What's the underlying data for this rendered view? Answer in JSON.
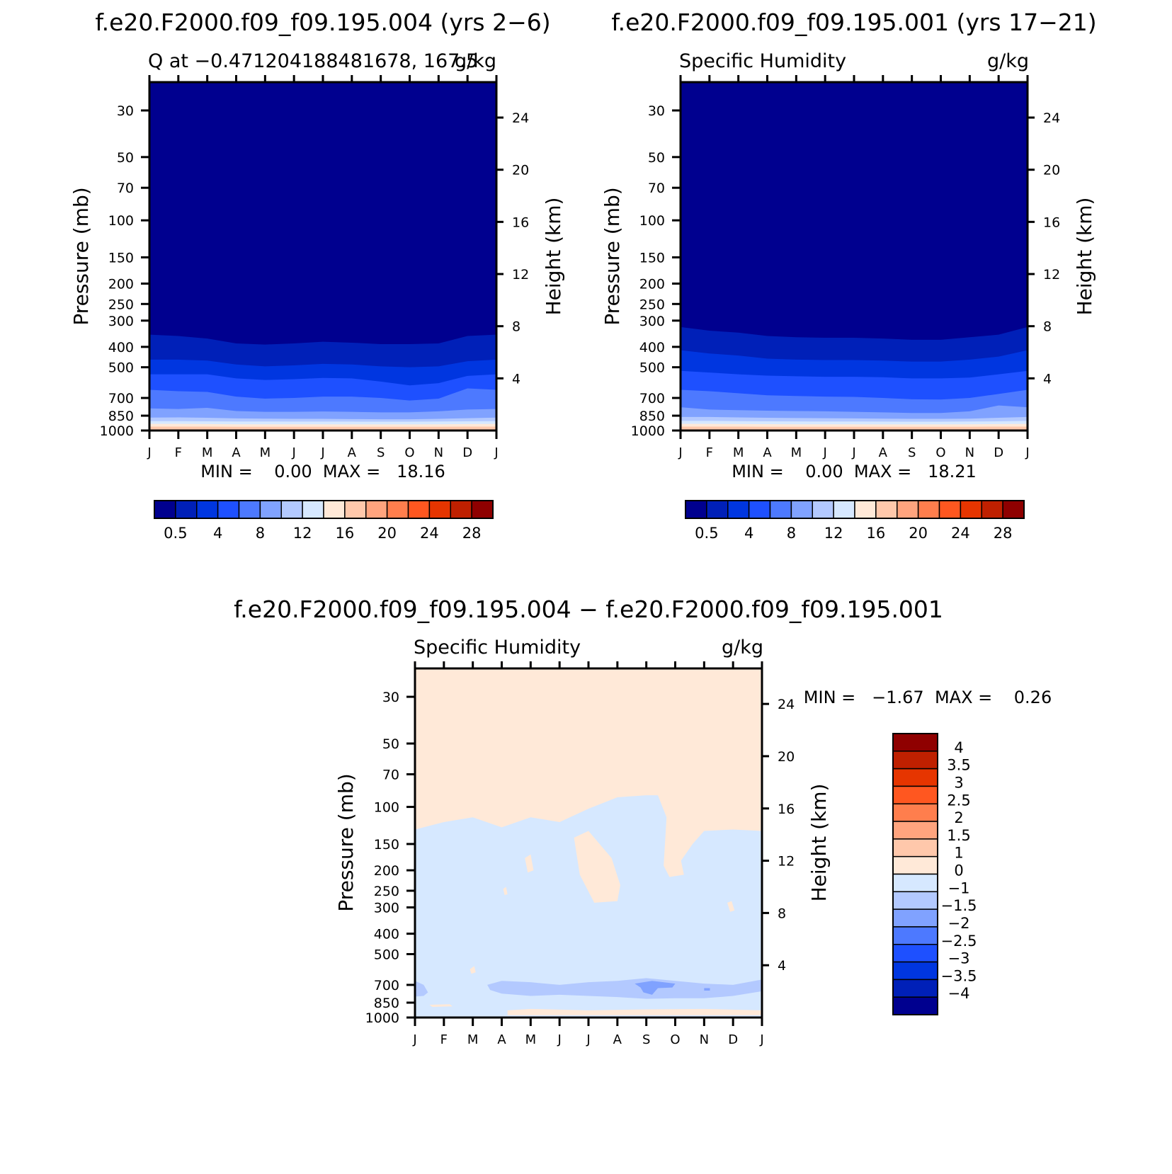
{
  "colors": {
    "seq": [
      "#00008f",
      "#0020b8",
      "#0036e0",
      "#1e50ff",
      "#4d79ff",
      "#80a2ff",
      "#b3c9ff",
      "#d6e8ff",
      "#ffe9d8",
      "#ffc8ab",
      "#ffa47e",
      "#ff7e4d",
      "#ff5720",
      "#e63500",
      "#bf2000",
      "#8f0000"
    ],
    "diff": [
      "#00008f",
      "#0020b8",
      "#0036e0",
      "#1e50ff",
      "#4d79ff",
      "#80a2ff",
      "#b3c9ff",
      "#d6e8ff",
      "#ffe9d8",
      "#ffc8ab",
      "#ffa47e",
      "#ff7e4d",
      "#ff5720",
      "#e63500",
      "#bf2000",
      "#8f0000"
    ]
  },
  "chart_data": [
    {
      "type": "heatmap",
      "id": "panel1",
      "header": "f.e20.F2000.f09_f09.195.004 (yrs 2−6)",
      "left_title": "Q at −0.471204188481678, 167.5",
      "right_title": "g/kg",
      "ylabel": "Pressure (mb)",
      "y2label": "Height (km)",
      "xticks": [
        "J",
        "F",
        "M",
        "A",
        "M",
        "J",
        "J",
        "A",
        "S",
        "O",
        "N",
        "D",
        "J"
      ],
      "pressure_ticks": [
        30,
        50,
        70,
        100,
        150,
        200,
        250,
        300,
        400,
        500,
        700,
        850,
        1000
      ],
      "height_ticks": [
        4,
        8,
        12,
        16,
        20,
        24
      ],
      "ylim": [
        1000,
        22
      ],
      "minmax": "MIN =    0.00  MAX =   18.16",
      "colorbar_labels": [
        "0.5",
        "4",
        "8",
        "12",
        "16",
        "20",
        "24",
        "28"
      ],
      "x": [
        0,
        1,
        2,
        3,
        4,
        5,
        6,
        7,
        8,
        9,
        10,
        11,
        12
      ],
      "contours": [
        {
          "level": 0.5,
          "p": [
            350,
            355,
            365,
            385,
            390,
            385,
            378,
            382,
            388,
            388,
            385,
            355,
            350
          ]
        },
        {
          "level": 1,
          "p": [
            460,
            460,
            465,
            485,
            495,
            490,
            482,
            485,
            495,
            500,
            495,
            468,
            460
          ]
        },
        {
          "level": 2,
          "p": [
            540,
            540,
            540,
            565,
            575,
            570,
            562,
            565,
            585,
            610,
            595,
            550,
            540
          ]
        },
        {
          "level": 3,
          "p": [
            640,
            650,
            655,
            690,
            705,
            700,
            690,
            690,
            700,
            720,
            705,
            630,
            640
          ]
        },
        {
          "level": 4,
          "p": [
            785,
            790,
            780,
            808,
            815,
            815,
            812,
            815,
            820,
            820,
            810,
            795,
            790
          ]
        },
        {
          "level": 6,
          "p": [
            868,
            866,
            870,
            876,
            878,
            880,
            880,
            882,
            884,
            884,
            880,
            874,
            868
          ]
        },
        {
          "level": 8,
          "p": [
            902,
            902,
            904,
            906,
            906,
            907,
            907,
            907,
            908,
            908,
            906,
            904,
            902
          ]
        },
        {
          "level": 12,
          "p": [
            930,
            930,
            932,
            934,
            934,
            934,
            934,
            935,
            935,
            935,
            934,
            932,
            930
          ]
        },
        {
          "level": 16,
          "p": [
            958,
            958,
            958,
            960,
            960,
            960,
            960,
            960,
            960,
            960,
            960,
            958,
            958
          ]
        }
      ]
    },
    {
      "type": "heatmap",
      "id": "panel2",
      "header": "f.e20.F2000.f09_f09.195.001 (yrs 17−21)",
      "left_title": "Specific Humidity",
      "right_title": "g/kg",
      "ylabel": "Pressure (mb)",
      "y2label": "Height (km)",
      "xticks": [
        "J",
        "F",
        "M",
        "A",
        "M",
        "J",
        "J",
        "A",
        "S",
        "O",
        "N",
        "D",
        "J"
      ],
      "pressure_ticks": [
        30,
        50,
        70,
        100,
        150,
        200,
        250,
        300,
        400,
        500,
        700,
        850,
        1000
      ],
      "height_ticks": [
        4,
        8,
        12,
        16,
        20,
        24
      ],
      "ylim": [
        1000,
        22
      ],
      "minmax": "MIN =    0.00  MAX =   18.21",
      "colorbar_labels": [
        "0.5",
        "4",
        "8",
        "12",
        "16",
        "20",
        "24",
        "28"
      ],
      "x": [
        0,
        1,
        2,
        3,
        4,
        5,
        6,
        7,
        8,
        9,
        10,
        11,
        12
      ],
      "contours": [
        {
          "level": 0.5,
          "p": [
            322,
            335,
            342,
            355,
            360,
            362,
            362,
            365,
            370,
            370,
            360,
            350,
            322
          ]
        },
        {
          "level": 1,
          "p": [
            415,
            430,
            440,
            455,
            460,
            462,
            462,
            465,
            470,
            470,
            460,
            445,
            415
          ]
        },
        {
          "level": 2,
          "p": [
            520,
            530,
            540,
            548,
            552,
            555,
            555,
            558,
            565,
            565,
            560,
            540,
            520
          ]
        },
        {
          "level": 3,
          "p": [
            640,
            650,
            665,
            680,
            685,
            690,
            692,
            700,
            710,
            712,
            700,
            670,
            640
          ]
        },
        {
          "level": 4,
          "p": [
            775,
            795,
            800,
            805,
            808,
            810,
            815,
            820,
            825,
            825,
            810,
            760,
            775
          ]
        },
        {
          "level": 6,
          "p": [
            862,
            862,
            866,
            870,
            872,
            874,
            876,
            878,
            880,
            880,
            878,
            870,
            862
          ]
        },
        {
          "level": 8,
          "p": [
            900,
            900,
            902,
            904,
            905,
            906,
            906,
            907,
            908,
            908,
            906,
            904,
            900
          ]
        },
        {
          "level": 12,
          "p": [
            930,
            930,
            932,
            933,
            934,
            934,
            934,
            935,
            935,
            935,
            934,
            932,
            930
          ]
        },
        {
          "level": 16,
          "p": [
            958,
            958,
            958,
            960,
            960,
            960,
            960,
            960,
            960,
            960,
            960,
            958,
            958
          ]
        }
      ]
    },
    {
      "type": "heatmap",
      "id": "panel3",
      "header": "f.e20.F2000.f09_f09.195.004 − f.e20.F2000.f09_f09.195.001",
      "left_title": "Specific Humidity",
      "right_title": "g/kg",
      "ylabel": "Pressure (mb)",
      "y2label": "Height (km)",
      "xticks": [
        "J",
        "F",
        "M",
        "A",
        "M",
        "J",
        "J",
        "A",
        "S",
        "O",
        "N",
        "D",
        "J"
      ],
      "pressure_ticks": [
        30,
        50,
        70,
        100,
        150,
        200,
        250,
        300,
        400,
        500,
        700,
        850,
        1000
      ],
      "height_ticks": [
        4,
        8,
        12,
        16,
        20,
        24
      ],
      "ylim": [
        1000,
        22
      ],
      "minmax": "MIN =   −1.67  MAX =    0.26",
      "colorbar_labels": [
        "4",
        "3.5",
        "3",
        "2.5",
        "2",
        "1.5",
        "1",
        "0",
        "−1",
        "−1.5",
        "−2",
        "−2.5",
        "−3",
        "−3.5",
        "−4"
      ],
      "background_value": 0.1,
      "regions": [
        {
          "value": -0.3,
          "poly": [
            [
              0,
              128
            ],
            [
              1,
              118
            ],
            [
              2,
              112
            ],
            [
              3,
              125
            ],
            [
              4,
              112
            ],
            [
              5,
              118
            ],
            [
              6,
              102
            ],
            [
              7,
              90
            ],
            [
              8,
              88
            ],
            [
              8.4,
              88
            ],
            [
              8.7,
              112
            ],
            [
              8.6,
              190
            ],
            [
              8.8,
              215
            ],
            [
              9.3,
              210
            ],
            [
              9.2,
              180
            ],
            [
              9.6,
              150
            ],
            [
              10,
              130
            ],
            [
              11,
              128
            ],
            [
              12,
              130
            ],
            [
              12,
              1000
            ],
            [
              0,
              1000
            ]
          ]
        },
        {
          "value": 0.1,
          "poly": [
            [
              5.5,
              140
            ],
            [
              6,
              130
            ],
            [
              6.8,
              175
            ],
            [
              7.1,
              235
            ],
            [
              7,
              280
            ],
            [
              6.2,
              285
            ],
            [
              5.7,
              210
            ]
          ]
        },
        {
          "value": 0.1,
          "poly": [
            [
              3.8,
              175
            ],
            [
              4,
              168
            ],
            [
              4.1,
              200
            ],
            [
              3.9,
              205
            ]
          ]
        },
        {
          "value": 0.1,
          "poly": [
            [
              3.05,
              245
            ],
            [
              3.15,
              240
            ],
            [
              3.2,
              260
            ],
            [
              3.1,
              262
            ]
          ]
        },
        {
          "value": 0.1,
          "poly": [
            [
              10.8,
              285
            ],
            [
              10.95,
              280
            ],
            [
              11.05,
              310
            ],
            [
              10.9,
              315
            ]
          ]
        },
        {
          "value": 0.1,
          "poly": [
            [
              1.9,
              590
            ],
            [
              2.05,
              570
            ],
            [
              2.1,
              610
            ],
            [
              1.95,
              620
            ]
          ]
        },
        {
          "value": 0.1,
          "poly": [
            [
              9.6,
              75
            ],
            [
              9.9,
              70
            ],
            [
              10.2,
              78
            ],
            [
              9.9,
              85
            ]
          ]
        },
        {
          "value": -1.2,
          "poly": [
            [
              0,
              670
            ],
            [
              0.3,
              700
            ],
            [
              0.45,
              760
            ],
            [
              0.3,
              790
            ],
            [
              0,
              795
            ]
          ]
        },
        {
          "value": -1.2,
          "poly": [
            [
              2.5,
              700
            ],
            [
              3,
              670
            ],
            [
              4,
              680
            ],
            [
              5,
              700
            ],
            [
              6,
              680
            ],
            [
              7,
              670
            ],
            [
              8,
              650
            ],
            [
              9,
              670
            ],
            [
              10,
              690
            ],
            [
              11,
              700
            ],
            [
              12,
              660
            ],
            [
              12,
              750
            ],
            [
              11,
              790
            ],
            [
              10,
              810
            ],
            [
              9,
              810
            ],
            [
              8,
              815
            ],
            [
              7,
              800
            ],
            [
              6,
              790
            ],
            [
              5,
              780
            ],
            [
              4,
              790
            ],
            [
              3,
              770
            ],
            [
              2.6,
              740
            ]
          ]
        },
        {
          "value": -1.7,
          "poly": [
            [
              7.6,
              690
            ],
            [
              8.2,
              670
            ],
            [
              9,
              690
            ],
            [
              8.9,
              720
            ],
            [
              8.4,
              725
            ],
            [
              8.2,
              780
            ],
            [
              7.9,
              760
            ],
            [
              7.8,
              720
            ]
          ]
        },
        {
          "value": -1.7,
          "poly": [
            [
              10,
              725
            ],
            [
              10.2,
              725
            ],
            [
              10.2,
              745
            ],
            [
              10,
              745
            ]
          ]
        },
        {
          "value": 0.1,
          "poly": [
            [
              0.5,
              870
            ],
            [
              1.2,
              865
            ],
            [
              1.3,
              885
            ],
            [
              0.6,
              890
            ]
          ]
        },
        {
          "value": 0.1,
          "poly": [
            [
              3.2,
              925
            ],
            [
              4,
              910
            ],
            [
              6,
              925
            ],
            [
              8,
              915
            ],
            [
              10,
              910
            ],
            [
              12,
              925
            ],
            [
              12,
              975
            ],
            [
              3.2,
              975
            ]
          ]
        }
      ]
    }
  ]
}
